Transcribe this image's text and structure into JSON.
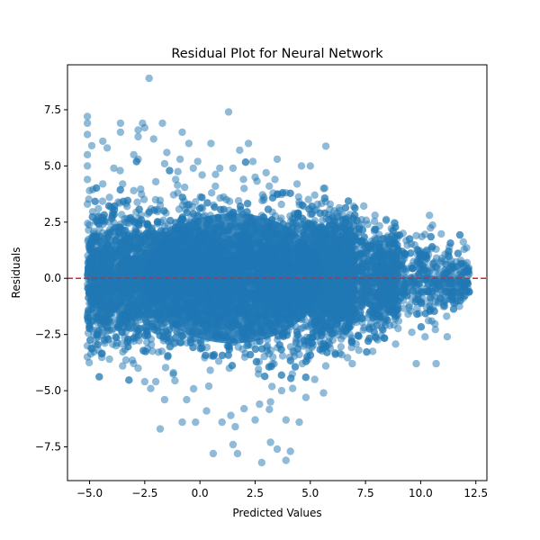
{
  "chart_data": {
    "type": "scatter",
    "title": "Residual Plot for Neural Network",
    "xlabel": "Predicted Values",
    "ylabel": "Residuals",
    "xlim": [
      -6.0,
      13.0
    ],
    "ylim": [
      -9.0,
      9.5
    ],
    "xticks": [
      -5.0,
      -2.5,
      0.0,
      2.5,
      5.0,
      7.5,
      10.0,
      12.5
    ],
    "xtick_labels": [
      "−5.0",
      "−2.5",
      "0.0",
      "2.5",
      "5.0",
      "7.5",
      "10.0",
      "12.5"
    ],
    "yticks": [
      -7.5,
      -5.0,
      -2.5,
      0.0,
      2.5,
      5.0,
      7.5
    ],
    "ytick_labels": [
      "−7.5",
      "−5.0",
      "−2.5",
      "0.0",
      "2.5",
      "5.0",
      "7.5"
    ],
    "grid": false,
    "marker_color": "#1f77b4",
    "marker_alpha": 0.5,
    "reference_line": {
      "y": 0,
      "style": "dashed",
      "color": "#d62728"
    },
    "series": [
      {
        "points": [
          [
            -2.3,
            8.9
          ],
          [
            1.3,
            7.4
          ],
          [
            -5.1,
            7.2
          ],
          [
            -5.1,
            6.9
          ],
          [
            -3.6,
            6.9
          ],
          [
            -1.7,
            6.9
          ],
          [
            -2.6,
            6.9
          ],
          [
            -2.5,
            6.7
          ],
          [
            -2.8,
            6.6
          ],
          [
            -5.1,
            6.4
          ],
          [
            -3.6,
            6.5
          ],
          [
            -0.8,
            6.5
          ],
          [
            -2.8,
            6.3
          ],
          [
            -2.1,
            6.2
          ],
          [
            -4.4,
            6.1
          ],
          [
            0.5,
            6.0
          ],
          [
            -0.5,
            6.0
          ],
          [
            2.2,
            6.0
          ],
          [
            -4.2,
            5.8
          ],
          [
            -4.9,
            5.9
          ],
          [
            -5.1,
            5.5
          ],
          [
            1.8,
            5.7
          ],
          [
            -3.0,
            5.5
          ],
          [
            -1.5,
            5.6
          ],
          [
            -2.8,
            5.3
          ],
          [
            -0.9,
            5.3
          ],
          [
            -0.1,
            5.2
          ],
          [
            3.5,
            5.3
          ],
          [
            4.6,
            5.0
          ],
          [
            5.0,
            5.0
          ],
          [
            -1.6,
            5.1
          ],
          [
            0.9,
            4.9
          ],
          [
            2.4,
            5.2
          ],
          [
            -5.1,
            5.0
          ],
          [
            -3.9,
            4.9
          ],
          [
            -0.3,
            4.9
          ],
          [
            1.5,
            4.9
          ],
          [
            3.0,
            4.7
          ],
          [
            -5.1,
            4.4
          ],
          [
            -4.4,
            4.2
          ],
          [
            -3.5,
            4.2
          ],
          [
            -2.0,
            4.3
          ],
          [
            -1.1,
            4.4
          ],
          [
            0.1,
            4.6
          ],
          [
            2.5,
            4.5
          ],
          [
            3.4,
            4.4
          ],
          [
            4.4,
            4.2
          ],
          [
            5.6,
            4.0
          ],
          [
            -5.0,
            3.9
          ],
          [
            -4.1,
            3.6
          ],
          [
            -3.0,
            3.9
          ],
          [
            -1.0,
            3.8
          ],
          [
            0.7,
            4.1
          ],
          [
            2.0,
            4.0
          ],
          [
            3.9,
            3.8
          ],
          [
            5.2,
            3.7
          ],
          [
            5.9,
            3.3
          ],
          [
            -5.1,
            3.3
          ],
          [
            -4.6,
            3.1
          ],
          [
            -3.3,
            3.2
          ],
          [
            -0.2,
            3.4
          ],
          [
            1.2,
            3.5
          ],
          [
            2.9,
            3.6
          ],
          [
            4.7,
            3.2
          ],
          [
            6.2,
            2.9
          ],
          [
            6.6,
            2.6
          ],
          [
            7.3,
            2.4
          ],
          [
            7.6,
            2.4
          ],
          [
            7.9,
            2.1
          ],
          [
            8.5,
            1.8
          ],
          [
            9.2,
            2.0
          ],
          [
            9.8,
            1.9
          ],
          [
            10.4,
            2.8
          ],
          [
            10.7,
            1.3
          ],
          [
            11.3,
            1.4
          ],
          [
            11.1,
            0.8
          ],
          [
            11.8,
            0.3
          ],
          [
            12.1,
            0.7
          ],
          [
            12.2,
            0.2
          ],
          [
            12.1,
            -0.2
          ],
          [
            12.2,
            -0.6
          ],
          [
            11.8,
            -1.0
          ],
          [
            11.2,
            -2.6
          ],
          [
            10.5,
            -1.9
          ],
          [
            10.2,
            -2.6
          ],
          [
            10.7,
            -3.8
          ],
          [
            9.8,
            -3.8
          ],
          [
            9.0,
            -1.9
          ],
          [
            8.4,
            -2.1
          ],
          [
            7.7,
            -1.5
          ],
          [
            7.4,
            -2.3
          ],
          [
            6.8,
            -2.5
          ],
          [
            6.4,
            -2.7
          ],
          [
            5.9,
            -3.1
          ],
          [
            5.7,
            -3.9
          ],
          [
            5.2,
            -4.5
          ],
          [
            5.6,
            -5.1
          ],
          [
            4.8,
            -5.3
          ],
          [
            4.2,
            -4.9
          ],
          [
            3.7,
            -5.0
          ],
          [
            3.2,
            -5.5
          ],
          [
            2.7,
            -5.6
          ],
          [
            2.0,
            -5.8
          ],
          [
            1.4,
            -6.1
          ],
          [
            1.0,
            -6.4
          ],
          [
            0.3,
            -5.9
          ],
          [
            -0.2,
            -6.4
          ],
          [
            -0.6,
            -5.4
          ],
          [
            -0.8,
            -6.4
          ],
          [
            -1.6,
            -5.4
          ],
          [
            -1.8,
            -6.7
          ],
          [
            -2.5,
            -4.6
          ],
          [
            -2.8,
            -4.0
          ],
          [
            -3.5,
            -3.9
          ],
          [
            -4.1,
            -3.6
          ],
          [
            -4.6,
            -3.2
          ],
          [
            -5.1,
            -3.5
          ],
          [
            -5.1,
            -3.0
          ],
          [
            -4.8,
            -2.5
          ],
          [
            0.6,
            -7.8
          ],
          [
            1.5,
            -7.4
          ],
          [
            1.7,
            -7.8
          ],
          [
            2.8,
            -8.2
          ],
          [
            3.2,
            -7.3
          ],
          [
            3.5,
            -7.6
          ],
          [
            3.9,
            -8.1
          ],
          [
            4.1,
            -7.7
          ],
          [
            4.5,
            -6.4
          ],
          [
            3.9,
            -6.3
          ],
          [
            2.5,
            -6.3
          ],
          [
            1.6,
            -6.6
          ],
          [
            0.4,
            -4.8
          ],
          [
            -1.2,
            -4.2
          ],
          [
            -2.0,
            -4.6
          ],
          [
            -3.0,
            -2.8
          ],
          [
            -3.8,
            -3.0
          ],
          [
            4.9,
            -3.6
          ],
          [
            6.9,
            -3.8
          ],
          [
            7.2,
            -3.2
          ],
          [
            8.1,
            -1.8
          ],
          [
            8.6,
            -2.1
          ],
          [
            9.6,
            -2.4
          ],
          [
            10.8,
            -1.1
          ],
          [
            11.6,
            -0.4
          ]
        ]
      }
    ]
  }
}
